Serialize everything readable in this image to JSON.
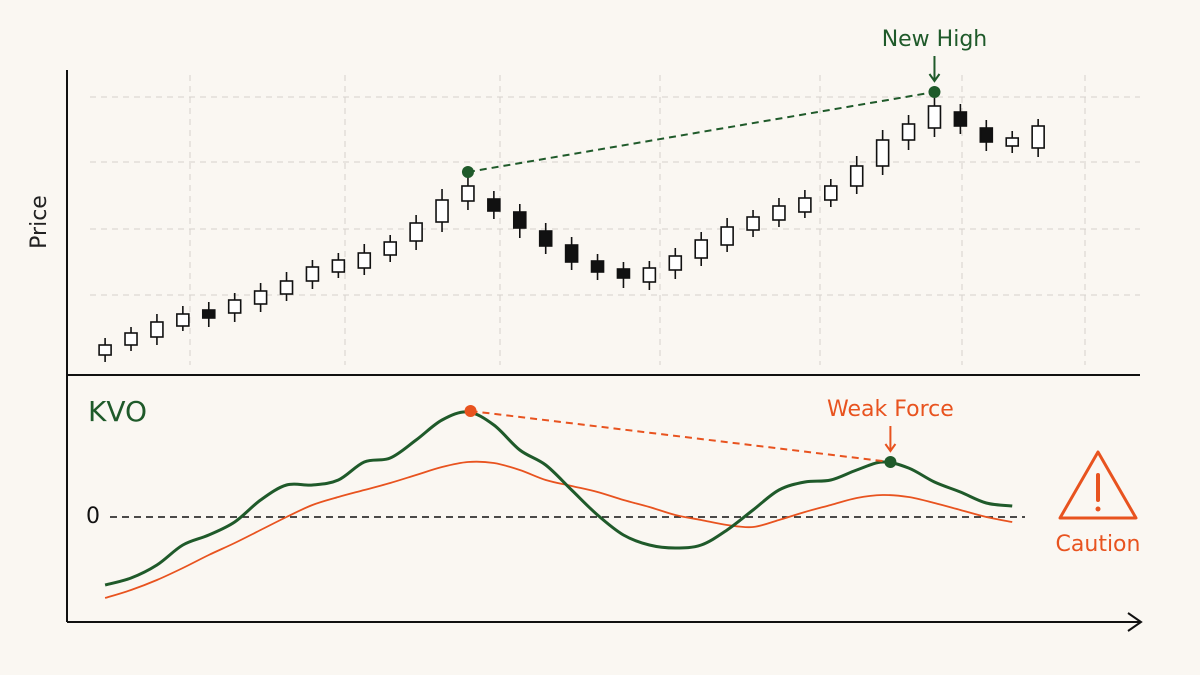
{
  "chart_data": [
    {
      "type": "candlestick",
      "y_label": "Price",
      "annotation": "New High",
      "x": [
        1,
        2,
        3,
        4,
        5,
        6,
        7,
        8,
        9,
        10,
        11,
        12,
        13,
        14,
        15,
        16,
        17,
        18,
        19,
        20,
        21,
        22,
        23,
        24,
        25,
        26,
        27,
        28,
        29,
        30,
        31,
        32,
        33,
        34,
        35,
        36,
        37
      ],
      "open": [
        20,
        30,
        38,
        49,
        65,
        62,
        71,
        81,
        94,
        103,
        107,
        120,
        134,
        153,
        174,
        176,
        163,
        144,
        130,
        114,
        106,
        93,
        105,
        117,
        130,
        145,
        155,
        163,
        175,
        189,
        209,
        235,
        247,
        263,
        247,
        229,
        227
      ],
      "high": [
        37,
        48,
        61,
        69,
        73,
        82,
        92,
        103,
        115,
        122,
        131,
        140,
        160,
        186,
        198,
        184,
        171,
        152,
        138,
        121,
        113,
        114,
        127,
        143,
        157,
        165,
        177,
        185,
        196,
        219,
        245,
        260,
        277,
        271,
        255,
        244,
        256
      ],
      "low": [
        13,
        24,
        30,
        44,
        48,
        53,
        63,
        74,
        86,
        97,
        100,
        113,
        125,
        143,
        165,
        156,
        137,
        121,
        105,
        95,
        87,
        85,
        96,
        109,
        123,
        138,
        148,
        157,
        168,
        181,
        200,
        225,
        238,
        241,
        224,
        222,
        218
      ],
      "close": [
        30,
        42,
        53,
        61,
        57,
        75,
        84,
        94,
        108,
        115,
        122,
        133,
        152,
        175,
        189,
        164,
        147,
        129,
        113,
        103,
        97,
        107,
        119,
        135,
        148,
        158,
        169,
        177,
        189,
        209,
        235,
        251,
        269,
        249,
        233,
        237,
        249
      ],
      "up_color": "#ffffff",
      "down_color": "#111111",
      "markers": {
        "x": [
          15,
          33
        ],
        "values": [
          203,
          283
        ],
        "colors": [
          "#1f5a2a",
          "#1f5a2a"
        ]
      },
      "xlim": [
        -0.47,
        40.93
      ],
      "ylim": [
        0,
        315
      ]
    },
    {
      "type": "line",
      "title": "KVO",
      "annotation": "Weak Force",
      "warning": "Caution",
      "x": [
        1,
        2,
        3,
        4,
        5,
        6,
        7,
        8,
        9,
        10,
        11,
        12,
        13,
        14,
        15,
        16,
        17,
        18,
        19,
        20,
        21,
        22,
        23,
        24,
        25,
        26,
        27,
        28,
        29,
        30,
        31,
        32,
        33,
        34,
        35,
        36
      ],
      "series": [
        {
          "color": "#1f5a2a",
          "values": [
            -68,
            -61,
            -48,
            -28,
            -18,
            -5,
            17,
            32,
            32,
            37,
            55,
            59,
            77,
            97,
            105,
            92,
            67,
            52,
            27,
            2,
            -18,
            -28,
            -31,
            -28,
            -13,
            7,
            27,
            35,
            37,
            47,
            55,
            49,
            35,
            25,
            14,
            11
          ]
        },
        {
          "color": "#e8531f",
          "values": [
            -81,
            -73,
            -63,
            -51,
            -38,
            -26,
            -13,
            0,
            12,
            20,
            27,
            34,
            42,
            50,
            55,
            54,
            47,
            37,
            31,
            25,
            17,
            10,
            2,
            -3,
            -8,
            -10,
            -3,
            5,
            12,
            19,
            22,
            20,
            14,
            7,
            0,
            -5
          ]
        }
      ],
      "markers": {
        "x": [
          15.1,
          31.3
        ],
        "values": [
          106,
          55
        ],
        "colors": [
          "#e8531f",
          "#1f5a2a"
        ]
      },
      "xlim": [
        -0.47,
        40.93
      ],
      "ylim": [
        -105,
        142
      ],
      "yticks": [
        0
      ]
    }
  ]
}
